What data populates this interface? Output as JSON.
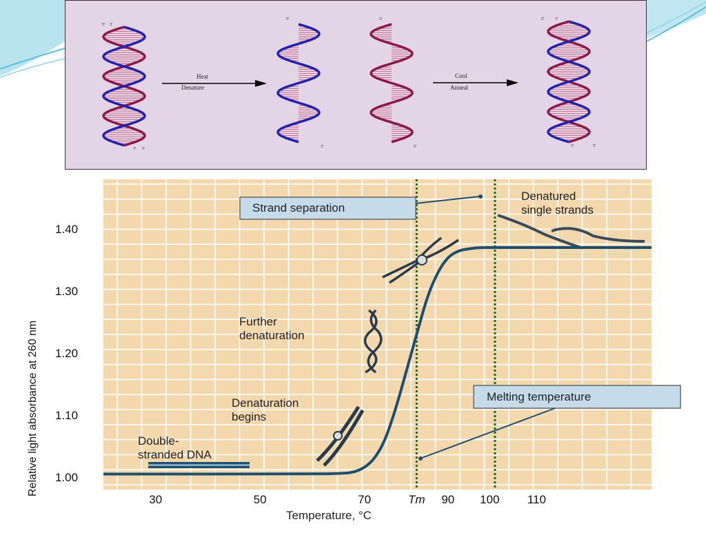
{
  "diagram": {
    "arrow1": {
      "top": "Heat",
      "bottom": "Denature"
    },
    "arrow2": {
      "top": "Cool",
      "bottom": "Anneal"
    },
    "strand_ends": {
      "five": "5'",
      "three": "3'"
    },
    "colors": {
      "strand_a": "#2222aa",
      "strand_b": "#8a1a4a",
      "hbond": "#c05070"
    }
  },
  "chart_data": {
    "type": "line",
    "title": "",
    "xlabel": "Temperature, °C",
    "ylabel": "Relative light absorbance at 260 nm",
    "xlim": [
      20,
      125
    ],
    "ylim": [
      0.98,
      1.48
    ],
    "x_ticks": [
      "30",
      "50",
      "70",
      "Tm",
      "90",
      "100",
      "110"
    ],
    "y_ticks": [
      "1.00",
      "1.10",
      "1.20",
      "1.30",
      "1.40"
    ],
    "series": [
      {
        "x": [
          20,
          60,
          66,
          68,
          70,
          72,
          74,
          76,
          78,
          80,
          82,
          84,
          86,
          88,
          90,
          92,
          95,
          100,
          110,
          125
        ],
        "y": [
          1.005,
          1.005,
          1.006,
          1.008,
          1.015,
          1.03,
          1.06,
          1.11,
          1.17,
          1.23,
          1.29,
          1.33,
          1.355,
          1.365,
          1.368,
          1.37,
          1.37,
          1.37,
          1.37,
          1.37
        ]
      }
    ],
    "vlines": [
      {
        "x": 80,
        "style": "dotted",
        "color": "#1a6a2a"
      },
      {
        "x": 95,
        "style": "dotted",
        "color": "#1a6a2a"
      }
    ],
    "annotations": [
      {
        "text": "Strand separation",
        "boxed": true
      },
      {
        "text": "Denatured single strands"
      },
      {
        "text": "Further denaturation"
      },
      {
        "text": "Denaturation begins"
      },
      {
        "text": "Melting temperature",
        "boxed": true
      },
      {
        "text": "Double-stranded DNA"
      }
    ],
    "colors": {
      "background": "#f3d8ad",
      "grid": "#ffffff",
      "curve": "#1d4e6e"
    },
    "grid": true
  }
}
